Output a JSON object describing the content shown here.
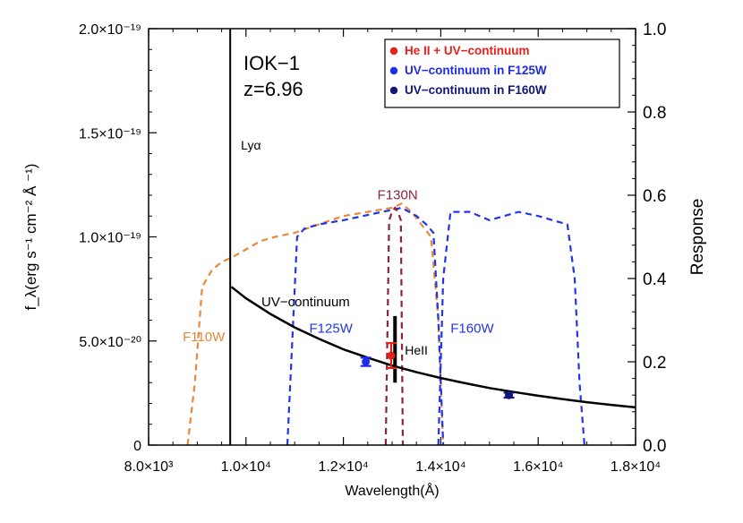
{
  "chart_data": {
    "type": "line",
    "title": "",
    "xlabel": "Wavelength(Å)",
    "ylabel_left": "f_λ(erg s⁻¹ cm⁻² Å ⁻¹)",
    "ylabel_right": "Response",
    "xlim": [
      8000,
      18000
    ],
    "ylim_left": [
      0,
      2e-19
    ],
    "ylim_right": [
      0,
      1.0
    ],
    "x_ticks": [
      {
        "value": 8000,
        "label": "8.0×10³"
      },
      {
        "value": 10000,
        "label": "1.0×10⁴"
      },
      {
        "value": 12000,
        "label": "1.2×10⁴"
      },
      {
        "value": 14000,
        "label": "1.4×10⁴"
      },
      {
        "value": 16000,
        "label": "1.6×10⁴"
      },
      {
        "value": 18000,
        "label": "1.8×10⁴"
      }
    ],
    "y_ticks_left": [
      {
        "value": 0,
        "label": "0"
      },
      {
        "value": 5e-20,
        "label": "5.0×10⁻²⁰"
      },
      {
        "value": 1e-19,
        "label": "1.0×10⁻¹⁹"
      },
      {
        "value": 1.5e-19,
        "label": "1.5×10⁻¹⁹"
      },
      {
        "value": 2e-19,
        "label": "2.0×10⁻¹⁹"
      }
    ],
    "y_ticks_right": [
      {
        "value": 0.0,
        "label": "0.0"
      },
      {
        "value": 0.2,
        "label": "0.2"
      },
      {
        "value": 0.4,
        "label": "0.4"
      },
      {
        "value": 0.6,
        "label": "0.6"
      },
      {
        "value": 0.8,
        "label": "0.8"
      },
      {
        "value": 1.0,
        "label": "1.0"
      }
    ],
    "object_name": "IOK−1",
    "redshift_label": "z=6.96",
    "lya_label": "Lyα",
    "heii_label": "HeII",
    "continuum_label": "UV−continuum",
    "legend": {
      "position": "top-right",
      "entries": [
        {
          "label": "He II + UV−continuum",
          "color": "#e8201a"
        },
        {
          "label": "UV−continuum in F125W",
          "color": "#1f2bea"
        },
        {
          "label": "UV−continuum in F160W",
          "color": "#12157a"
        }
      ]
    },
    "lya_line": {
      "x": 9676,
      "y_top": 2e-19
    },
    "heii_line": {
      "x": 13060,
      "y_bottom": 3e-20,
      "y_top": 6.2e-20
    },
    "continuum": {
      "x": [
        9700,
        10000,
        10500,
        11000,
        11500,
        12000,
        12500,
        13000,
        13500,
        14000,
        14500,
        15000,
        15500,
        16000,
        16500,
        17000,
        17500,
        18000
      ],
      "y": [
        7.6e-20,
        7.05e-20,
        6.3e-20,
        5.65e-20,
        5.1e-20,
        4.6e-20,
        4.2e-20,
        3.82e-20,
        3.5e-20,
        3.22e-20,
        2.97e-20,
        2.74e-20,
        2.55e-20,
        2.37e-20,
        2.21e-20,
        2.06e-20,
        1.93e-20,
        1.81e-20
      ]
    },
    "points": [
      {
        "series": "He II + UV−continuum",
        "x": 12980,
        "y": 4.3e-20,
        "yerr": 6e-21,
        "color": "#e8201a"
      },
      {
        "series": "UV−continuum in F125W",
        "x": 12460,
        "y": 4e-20,
        "yerr": 2e-21,
        "color": "#1f2bea"
      },
      {
        "series": "UV−continuum in F160W",
        "x": 15400,
        "y": 2.4e-20,
        "yerr": 1.2e-21,
        "color": "#12157a"
      }
    ],
    "filters": [
      {
        "name": "F110W",
        "color": "#e8893a",
        "label_at": [
          8700,
          0.25
        ],
        "x": [
          8800,
          8950,
          9100,
          9300,
          9500,
          9700,
          10000,
          10300,
          10600,
          11000,
          11500,
          12000,
          12500,
          13000,
          13200,
          13400,
          13600,
          13800,
          13950,
          14050
        ],
        "response": [
          0.0,
          0.15,
          0.38,
          0.42,
          0.44,
          0.45,
          0.47,
          0.49,
          0.5,
          0.51,
          0.53,
          0.55,
          0.56,
          0.57,
          0.58,
          0.56,
          0.53,
          0.5,
          0.3,
          0.0
        ]
      },
      {
        "name": "F125W",
        "color": "#2036e8",
        "label_at": [
          11300,
          0.27
        ],
        "x": [
          10850,
          10950,
          11050,
          11200,
          11500,
          12000,
          12400,
          12800,
          13200,
          13500,
          13700,
          13850,
          13950,
          14050
        ],
        "response": [
          0.0,
          0.25,
          0.5,
          0.52,
          0.53,
          0.54,
          0.55,
          0.56,
          0.57,
          0.55,
          0.53,
          0.51,
          0.3,
          0.0
        ]
      },
      {
        "name": "F130N",
        "color": "#8b2440",
        "label_at": [
          12700,
          0.59
        ],
        "x": [
          12870,
          12940,
          13000,
          13060,
          13120,
          13180,
          13220
        ],
        "response": [
          0.0,
          0.54,
          0.56,
          0.57,
          0.56,
          0.54,
          0.0
        ]
      },
      {
        "name": "F160W",
        "color": "#2036e8",
        "label_at": [
          14200,
          0.27
        ],
        "x": [
          13950,
          14050,
          14200,
          14400,
          14600,
          15000,
          15300,
          15600,
          16000,
          16300,
          16600,
          16750,
          16850,
          16950
        ],
        "response": [
          0.0,
          0.4,
          0.56,
          0.56,
          0.56,
          0.54,
          0.55,
          0.56,
          0.55,
          0.54,
          0.53,
          0.4,
          0.15,
          0.0
        ]
      }
    ]
  }
}
